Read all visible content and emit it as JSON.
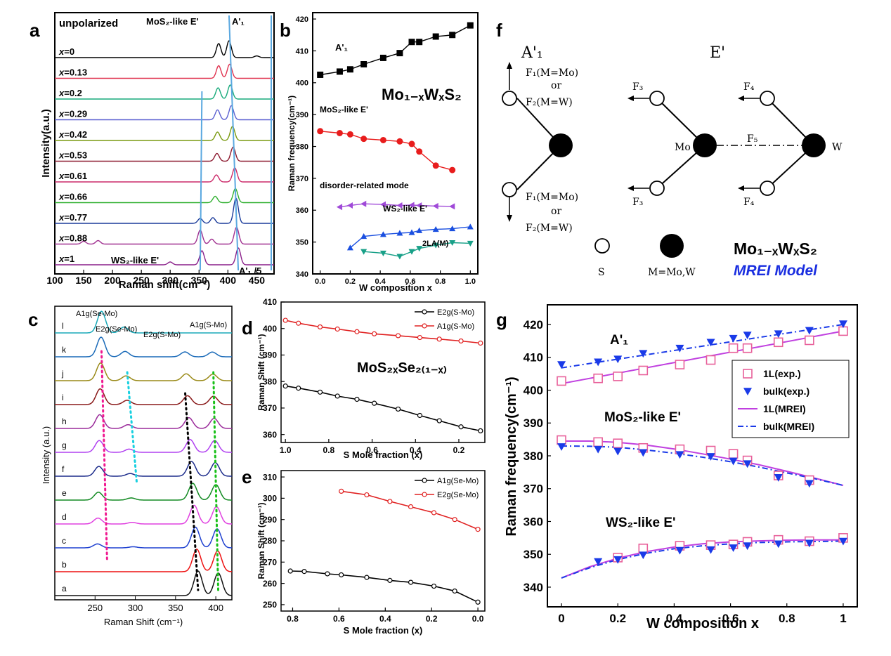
{
  "panel_letters": {
    "a": "a",
    "b": "b",
    "c": "c",
    "d": "d",
    "e": "e",
    "f": "f",
    "g": "g"
  },
  "chart_data": [
    {
      "panel": "a",
      "type": "line",
      "xlabel": "Raman shift(cm⁻¹)",
      "ylabel": "Intensity(a.u.)",
      "xlim": [
        100,
        480
      ],
      "xticks": [
        100,
        150,
        200,
        250,
        300,
        350,
        400,
        450
      ],
      "header_label": "unpolarized",
      "annotations": {
        "mos2_like": "MoS₂-like E'",
        "a1": "A'₁",
        "ws2_like": "WS₂-like E'",
        "a1_div": "A'₁ /5"
      },
      "series": [
        {
          "name": "x=0",
          "label_prefix": "x",
          "label_value": "=0",
          "color": "#000000",
          "peaks": [
            [
              384,
              1.0
            ],
            [
              402,
              1.2
            ],
            [
              450,
              0.12
            ]
          ]
        },
        {
          "name": "x=0.13",
          "label_prefix": "x",
          "label_value": "=0.13",
          "color": "#e0324f",
          "peaks": [
            [
              384,
              0.9
            ],
            [
              403,
              1.0
            ]
          ]
        },
        {
          "name": "x=0.2",
          "label_prefix": "x",
          "label_value": "=0.2",
          "color": "#17aa7a",
          "peaks": [
            [
              383,
              0.8
            ],
            [
              404,
              1.0
            ]
          ]
        },
        {
          "name": "x=0.29",
          "label_prefix": "x",
          "label_value": "=0.29",
          "color": "#5a5fd0",
          "peaks": [
            [
              382,
              0.7
            ],
            [
              406,
              1.0
            ]
          ]
        },
        {
          "name": "x=0.42",
          "label_prefix": "x",
          "label_value": "=0.42",
          "color": "#7a9a10",
          "peaks": [
            [
              382,
              0.6
            ],
            [
              408,
              1.0
            ]
          ]
        },
        {
          "name": "x=0.53",
          "label_prefix": "x",
          "label_value": "=0.53",
          "color": "#8c1a30",
          "peaks": [
            [
              381,
              0.55
            ],
            [
              409,
              1.0
            ]
          ]
        },
        {
          "name": "x=0.61",
          "label_prefix": "x",
          "label_value": "=0.61",
          "color": "#cc2a6a",
          "peaks": [
            [
              380,
              0.5
            ],
            [
              412,
              1.0
            ]
          ]
        },
        {
          "name": "x=0.66",
          "label_prefix": "x",
          "label_value": "=0.66",
          "color": "#30b030",
          "peaks": [
            [
              378,
              0.45
            ],
            [
              413,
              1.0
            ]
          ]
        },
        {
          "name": "x=0.77",
          "label_prefix": "x",
          "label_value": "=0.77",
          "color": "#1a3a9a",
          "peaks": [
            [
              374,
              0.4
            ],
            [
              414,
              1.8
            ],
            [
              352,
              0.35
            ]
          ]
        },
        {
          "name": "x=0.88",
          "label_prefix": "x",
          "label_value": "=0.88",
          "color": "#a03090",
          "peaks": [
            [
              372,
              0.35
            ],
            [
              415,
              1.2
            ],
            [
              352,
              1.0
            ],
            [
              150,
              0.2
            ],
            [
              175,
              0.25
            ]
          ]
        },
        {
          "name": "x=1",
          "label_prefix": "x",
          "label_value": "=1",
          "color": "#8a1f8a",
          "peaks": [
            [
              355,
              1.0
            ],
            [
              418,
              1.2
            ],
            [
              300,
              0.2
            ]
          ]
        }
      ]
    },
    {
      "panel": "b",
      "type": "line",
      "xlabel": "W composition x",
      "ylabel": "Raman frequency(cm⁻¹)",
      "xlim": [
        -0.05,
        1.05
      ],
      "ylim": [
        340,
        422
      ],
      "xticks": [
        0.0,
        0.2,
        0.4,
        0.6,
        0.8,
        1.0
      ],
      "xtick_labels": [
        "0.0",
        "0.2",
        "0.4",
        "0.6",
        "0.8",
        "1.0"
      ],
      "yticks": [
        340,
        350,
        360,
        370,
        380,
        390,
        400,
        410,
        420
      ],
      "title": "Mo₁₋ₓWₓS₂",
      "series": [
        {
          "name": "A'₁",
          "color": "#000000",
          "marker": "square",
          "x": [
            0.0,
            0.13,
            0.2,
            0.29,
            0.42,
            0.53,
            0.61,
            0.66,
            0.77,
            0.88,
            1.0
          ],
          "y": [
            402.5,
            403.5,
            404.2,
            405.8,
            407.8,
            409.3,
            412.8,
            412.8,
            414.5,
            415.0,
            418.0
          ]
        },
        {
          "name": "MoS₂-like E'",
          "color": "#e81c1c",
          "marker": "circle",
          "x": [
            0.0,
            0.13,
            0.2,
            0.29,
            0.42,
            0.53,
            0.61,
            0.66,
            0.77,
            0.88
          ],
          "y": [
            384.8,
            384.2,
            383.8,
            382.4,
            382.0,
            381.6,
            380.8,
            378.4,
            374.0,
            372.6
          ]
        },
        {
          "name": "disorder-related mode",
          "color": "#a04ad8",
          "marker": "triangle-left",
          "x": [
            0.13,
            0.2,
            0.29,
            0.42,
            0.53,
            0.61,
            0.66,
            0.77,
            0.88
          ],
          "y": [
            361.0,
            361.5,
            362.0,
            361.8,
            361.5,
            361.6,
            361.5,
            361.3,
            361.2
          ]
        },
        {
          "name": "WS₂-like E'",
          "color": "#1a4fe0",
          "marker": "triangle-up",
          "x": [
            0.2,
            0.29,
            0.42,
            0.53,
            0.61,
            0.66,
            0.77,
            0.88,
            1.0
          ],
          "y": [
            348.2,
            351.8,
            352.4,
            352.8,
            353.0,
            353.6,
            354.0,
            354.2,
            354.8
          ]
        },
        {
          "name": "2LA(M)",
          "color": "#18a088",
          "marker": "triangle-down",
          "x": [
            0.29,
            0.42,
            0.53,
            0.61,
            0.66,
            0.77,
            0.88,
            1.0
          ],
          "y": [
            347.0,
            346.5,
            345.5,
            347.0,
            348.0,
            349.0,
            349.8,
            349.6
          ]
        }
      ]
    },
    {
      "panel": "c",
      "type": "line",
      "xlabel": "Raman Shift (cm⁻¹)",
      "ylabel": "Intensity (a.u.)",
      "xlim": [
        200,
        420
      ],
      "xticks": [
        250,
        300,
        350,
        400
      ],
      "annotations": {
        "a1g_semo": "A1g(Se-Mo)",
        "e2g_semo": "E2g(Se-Mo)",
        "e2g_smo": "E2g(S-Mo)",
        "a1g_smo": "A1g(S-Mo)"
      },
      "series": [
        {
          "name": "a",
          "color": "#111111"
        },
        {
          "name": "b",
          "color": "#ee1111"
        },
        {
          "name": "c",
          "color": "#1e40d0"
        },
        {
          "name": "d",
          "color": "#e040e0"
        },
        {
          "name": "e",
          "color": "#128a22"
        },
        {
          "name": "f",
          "color": "#1a2a8a"
        },
        {
          "name": "g",
          "color": "#b040f0"
        },
        {
          "name": "h",
          "color": "#9a2a9a"
        },
        {
          "name": "i",
          "color": "#8a1a1a"
        },
        {
          "name": "j",
          "color": "#9a8a18"
        },
        {
          "name": "k",
          "color": "#1a6ab8"
        },
        {
          "name": "l",
          "color": "#18a8b8"
        }
      ]
    },
    {
      "panel": "d",
      "type": "line",
      "xlabel": "S Mole fraction (x)",
      "ylabel": "Raman Shift (cm⁻¹)",
      "xlim": [
        1.02,
        0.08
      ],
      "ylim": [
        357,
        410
      ],
      "xticks": [
        1.0,
        0.8,
        0.6,
        0.4,
        0.2
      ],
      "xtick_labels": [
        "1.0",
        "0.8",
        "0.6",
        "0.4",
        "0.2"
      ],
      "yticks": [
        360,
        370,
        380,
        390,
        400,
        410
      ],
      "title": "MoS₂ₓSe₂₍₁₋ₓ₎",
      "series": [
        {
          "name": "E2g(S-Mo)",
          "color": "#000000",
          "x": [
            1.0,
            0.94,
            0.84,
            0.76,
            0.67,
            0.59,
            0.48,
            0.38,
            0.29,
            0.19,
            0.1
          ],
          "y": [
            378.3,
            377.5,
            376.0,
            374.5,
            373.3,
            371.8,
            369.6,
            367.2,
            365.2,
            362.9,
            361.4
          ]
        },
        {
          "name": "A1g(S-Mo)",
          "color": "#e02020",
          "x": [
            1.0,
            0.94,
            0.84,
            0.76,
            0.67,
            0.59,
            0.48,
            0.38,
            0.29,
            0.19,
            0.1
          ],
          "y": [
            403.1,
            402.0,
            400.6,
            399.8,
            398.8,
            398.0,
            397.3,
            396.6,
            396.0,
            395.3,
            394.5
          ]
        }
      ]
    },
    {
      "panel": "e",
      "type": "line",
      "xlabel": "S Mole fraction (x)",
      "ylabel": "Raman Shift (cm⁻¹)",
      "xlim": [
        0.85,
        -0.03
      ],
      "ylim": [
        247,
        313
      ],
      "xticks": [
        0.8,
        0.6,
        0.4,
        0.2,
        0.0
      ],
      "xtick_labels": [
        "0.8",
        "0.6",
        "0.4",
        "0.2",
        "0.0"
      ],
      "yticks": [
        250,
        260,
        270,
        280,
        290,
        300,
        310
      ],
      "series": [
        {
          "name": "A1g(Se-Mo)",
          "color": "#000000",
          "x": [
            0.81,
            0.75,
            0.65,
            0.59,
            0.48,
            0.38,
            0.29,
            0.19,
            0.1,
            0.0
          ],
          "y": [
            265.8,
            265.6,
            264.5,
            264.0,
            262.8,
            261.4,
            260.5,
            258.7,
            256.4,
            251.2
          ]
        },
        {
          "name": "E2g(Se-Mo)",
          "color": "#e02020",
          "x": [
            0.59,
            0.48,
            0.38,
            0.29,
            0.19,
            0.1,
            0.0
          ],
          "y": [
            303.3,
            301.6,
            298.5,
            296.0,
            293.2,
            290.0,
            285.4
          ]
        }
      ]
    },
    {
      "panel": "g",
      "type": "line",
      "xlabel": "W composition x",
      "ylabel": "Raman frequency(cm⁻¹)",
      "xlim": [
        -0.05,
        1.05
      ],
      "ylim": [
        334,
        426
      ],
      "xticks": [
        0,
        0.2,
        0.4,
        0.6,
        0.8,
        1
      ],
      "xtick_labels": [
        "0",
        "0.2",
        "0.4",
        "0.6",
        "0.8",
        "1"
      ],
      "yticks": [
        340,
        350,
        360,
        370,
        380,
        390,
        400,
        410,
        420
      ],
      "group_labels": {
        "a1": "A'₁",
        "mos2": "MoS₂-like E'",
        "ws2": "WS₂-like E'"
      },
      "series": [
        {
          "name": "1L(exp.)",
          "color": "#e8609a",
          "marker": "open-square",
          "x": [
            0.0,
            0.13,
            0.2,
            0.29,
            0.42,
            0.53,
            0.61,
            0.66,
            0.77,
            0.88,
            1.0
          ],
          "y": [
            402.8,
            403.6,
            404.2,
            406.0,
            407.8,
            409.2,
            412.8,
            412.8,
            414.6,
            415.2,
            418.0
          ]
        },
        {
          "name": "bulk(exp.)",
          "color": "#1a3ae8",
          "marker": "filled-triangle-down",
          "x": [
            0.0,
            0.13,
            0.2,
            0.29,
            0.42,
            0.53,
            0.61,
            0.66,
            0.77,
            0.88,
            1.0
          ],
          "y": [
            407.8,
            408.6,
            409.5,
            411.2,
            412.8,
            414.6,
            415.8,
            416.8,
            417.2,
            418.2,
            420.2
          ]
        },
        {
          "name": "1L(MREI)",
          "color": "#c040e0",
          "style": "solid",
          "x": [
            0.0,
            1.0
          ],
          "y": [
            402.0,
            418.0
          ]
        },
        {
          "name": "bulk(MREI)",
          "color": "#1a3ae8",
          "style": "dash-dot",
          "x": [
            0.0,
            1.0
          ],
          "y": [
            406.8,
            420.0
          ]
        },
        {
          "name": "1L(exp.) MoS₂-like E'",
          "color": "#e8609a",
          "marker": "open-square",
          "x": [
            0.0,
            0.13,
            0.2,
            0.29,
            0.42,
            0.53,
            0.61,
            0.66,
            0.77,
            0.88
          ],
          "y": [
            384.8,
            384.2,
            383.8,
            382.4,
            382.0,
            381.6,
            380.6,
            378.6,
            374.0,
            372.6
          ]
        },
        {
          "name": "bulk(exp.) MoS₂-like E'",
          "color": "#1a3ae8",
          "marker": "filled-triangle-down",
          "x": [
            0.0,
            0.13,
            0.2,
            0.29,
            0.42,
            0.53,
            0.61,
            0.66,
            0.77,
            0.88
          ],
          "y": [
            382.8,
            382.0,
            381.4,
            381.0,
            380.4,
            379.8,
            378.4,
            377.6,
            373.4,
            371.6
          ]
        },
        {
          "name": "1L(MREI) MoS₂-like E'",
          "color": "#c040e0",
          "style": "solid",
          "x": [
            0.0,
            0.1,
            0.2,
            0.3,
            0.4,
            0.5,
            0.6,
            0.7,
            0.8,
            0.9,
            1.0
          ],
          "y": [
            384.5,
            384.5,
            384.1,
            383.3,
            382.1,
            380.6,
            379.0,
            377.3,
            375.3,
            373.2,
            371.0
          ]
        },
        {
          "name": "bulk(MREI) MoS₂-like E'",
          "color": "#1a3ae8",
          "style": "dash-dot",
          "x": [
            0.0,
            0.1,
            0.2,
            0.3,
            0.4,
            0.5,
            0.6,
            0.7,
            0.8,
            0.9,
            1.0
          ],
          "y": [
            383.0,
            382.9,
            382.6,
            381.8,
            380.8,
            379.6,
            378.2,
            376.6,
            374.8,
            373.0,
            371.0
          ]
        },
        {
          "name": "1L(exp.) WS₂-like E'",
          "color": "#e8609a",
          "marker": "open-square",
          "x": [
            0.2,
            0.29,
            0.42,
            0.53,
            0.61,
            0.66,
            0.77,
            0.88,
            1.0
          ],
          "y": [
            349.0,
            351.8,
            352.6,
            352.8,
            353.0,
            353.8,
            354.4,
            354.0,
            355.0
          ]
        },
        {
          "name": "bulk(exp.) WS₂-like E'",
          "color": "#1a3ae8",
          "marker": "filled-triangle-down",
          "x": [
            0.13,
            0.2,
            0.29,
            0.42,
            0.53,
            0.61,
            0.66,
            0.77,
            0.88,
            1.0
          ],
          "y": [
            347.8,
            348.4,
            349.8,
            351.2,
            351.4,
            352.0,
            352.6,
            353.2,
            353.4,
            354.0
          ]
        },
        {
          "name": "1L(MREI) WS₂-like E'",
          "color": "#c040e0",
          "style": "solid",
          "x": [
            0.0,
            0.1,
            0.2,
            0.3,
            0.4,
            0.5,
            0.6,
            0.7,
            0.8,
            0.9,
            1.0
          ],
          "y": [
            342.8,
            346.2,
            348.8,
            350.8,
            352.2,
            353.2,
            353.8,
            354.1,
            354.3,
            354.4,
            354.4
          ]
        },
        {
          "name": "bulk(MREI) WS₂-like E'",
          "color": "#1a3ae8",
          "style": "dash-dot",
          "x": [
            0.0,
            0.1,
            0.2,
            0.3,
            0.4,
            0.5,
            0.6,
            0.7,
            0.8,
            0.9,
            1.0
          ],
          "y": [
            342.8,
            345.9,
            348.4,
            350.3,
            351.7,
            352.6,
            353.2,
            353.6,
            353.8,
            353.9,
            354.0
          ]
        }
      ]
    }
  ],
  "diagram_f": {
    "heading_a1": "A'₁",
    "heading_e": "E'",
    "f1_top": "F₁(M=Mo)",
    "or_top": "or",
    "f2_top": "F₂(M=W)",
    "f1_bot": "F₁(M=Mo)",
    "or_bot": "or",
    "f2_bot": "F₂(M=W)",
    "f3_top": "F₃",
    "f3_bot": "F₃",
    "f4_top": "F₄",
    "f4_bot": "F₄",
    "f5": "F₅",
    "mo": "Mo",
    "w": "W",
    "legend_s": "S",
    "legend_m": "M=Mo,W",
    "formula": "Mo₁₋ₓWₓS₂",
    "model": "MREI Model",
    "model_color": "#1a2ee0"
  }
}
